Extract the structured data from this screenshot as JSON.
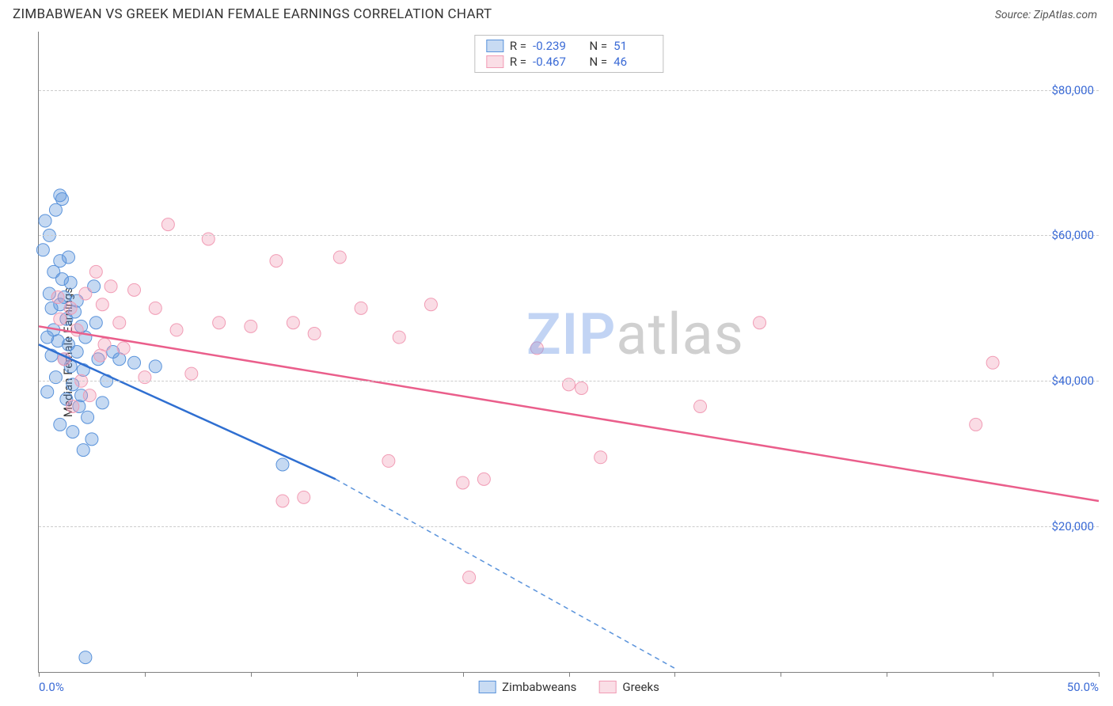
{
  "title": "ZIMBABWEAN VS GREEK MEDIAN FEMALE EARNINGS CORRELATION CHART",
  "source": "Source: ZipAtlas.com",
  "ylabel": "Median Female Earnings",
  "watermark": {
    "zip": "ZIP",
    "atlas": "atlas"
  },
  "chart": {
    "type": "scatter-with-trend",
    "xlim": [
      0,
      50
    ],
    "ylim": [
      0,
      88000
    ],
    "xticks": [
      0,
      5,
      10,
      15,
      20,
      25,
      30,
      35,
      40,
      45,
      50
    ],
    "xtick_labels": {
      "0": "0.0%",
      "50": "50.0%"
    },
    "ygrid": [
      20000,
      40000,
      60000,
      80000
    ],
    "ytick_labels": [
      "$20,000",
      "$40,000",
      "$60,000",
      "$80,000"
    ],
    "background_color": "#ffffff",
    "grid_color": "#cccccc",
    "axis_color": "#808080",
    "label_color": "#3b6bd6",
    "marker_radius": 8,
    "marker_fill_opacity": 0.35,
    "line_width": 2.5,
    "series": [
      {
        "name": "Zimbabweans",
        "key": "zimbabweans",
        "color": "#5a93db",
        "line_color": "#2f6fd1",
        "R": "-0.239",
        "N": "51",
        "trend": {
          "x1": 0,
          "y1": 45000,
          "x2": 14,
          "y2": 26500,
          "ext_x2": 30,
          "ext_y2": 500
        },
        "points": [
          [
            0.3,
            62000
          ],
          [
            0.5,
            60000
          ],
          [
            0.5,
            52000
          ],
          [
            0.6,
            50000
          ],
          [
            0.7,
            55000
          ],
          [
            0.7,
            47000
          ],
          [
            0.8,
            63500
          ],
          [
            1.0,
            65500
          ],
          [
            1.1,
            65000
          ],
          [
            1.1,
            54000
          ],
          [
            1.2,
            51500
          ],
          [
            1.3,
            48500
          ],
          [
            1.4,
            45000
          ],
          [
            1.5,
            53500
          ],
          [
            1.5,
            42000
          ],
          [
            1.6,
            39500
          ],
          [
            1.7,
            49500
          ],
          [
            1.8,
            44000
          ],
          [
            1.9,
            36500
          ],
          [
            2.0,
            47500
          ],
          [
            2.0,
            38000
          ],
          [
            2.1,
            41500
          ],
          [
            2.3,
            35000
          ],
          [
            2.5,
            32000
          ],
          [
            2.6,
            53000
          ],
          [
            2.8,
            43000
          ],
          [
            3.0,
            37000
          ],
          [
            3.2,
            40000
          ],
          [
            3.5,
            44000
          ],
          [
            1.0,
            34000
          ],
          [
            1.3,
            37500
          ],
          [
            0.8,
            40500
          ],
          [
            0.6,
            43500
          ],
          [
            1.8,
            51000
          ],
          [
            2.2,
            46000
          ],
          [
            2.7,
            48000
          ],
          [
            3.8,
            43000
          ],
          [
            4.5,
            42500
          ],
          [
            5.5,
            42000
          ],
          [
            1.0,
            56500
          ],
          [
            1.4,
            57000
          ],
          [
            1.0,
            50500
          ],
          [
            0.4,
            46000
          ],
          [
            0.4,
            38500
          ],
          [
            1.6,
            33000
          ],
          [
            2.1,
            30500
          ],
          [
            0.2,
            58000
          ],
          [
            2.2,
            2000
          ],
          [
            11.5,
            28500
          ],
          [
            1.2,
            43000
          ],
          [
            0.9,
            45500
          ]
        ]
      },
      {
        "name": "Greeks",
        "key": "greeks",
        "color": "#f19cb5",
        "line_color": "#ea5e8b",
        "R": "-0.467",
        "N": "46",
        "trend": {
          "x1": 0,
          "y1": 47500,
          "x2": 50,
          "y2": 23500
        },
        "points": [
          [
            1.0,
            48500
          ],
          [
            1.5,
            50000
          ],
          [
            1.8,
            47000
          ],
          [
            2.2,
            52000
          ],
          [
            2.4,
            38000
          ],
          [
            2.7,
            55000
          ],
          [
            3.0,
            50500
          ],
          [
            3.1,
            45000
          ],
          [
            3.4,
            53000
          ],
          [
            3.8,
            48000
          ],
          [
            4.5,
            52500
          ],
          [
            5.0,
            40500
          ],
          [
            5.5,
            50000
          ],
          [
            6.1,
            61500
          ],
          [
            6.5,
            47000
          ],
          [
            7.2,
            41000
          ],
          [
            8.0,
            59500
          ],
          [
            8.5,
            48000
          ],
          [
            10.0,
            47500
          ],
          [
            11.2,
            56500
          ],
          [
            11.5,
            23500
          ],
          [
            12.0,
            48000
          ],
          [
            12.5,
            24000
          ],
          [
            13.0,
            46500
          ],
          [
            14.2,
            57000
          ],
          [
            15.2,
            50000
          ],
          [
            16.5,
            29000
          ],
          [
            17.0,
            46000
          ],
          [
            18.5,
            50500
          ],
          [
            20.0,
            26000
          ],
          [
            21.0,
            26500
          ],
          [
            20.3,
            13000
          ],
          [
            23.5,
            44500
          ],
          [
            25.0,
            39500
          ],
          [
            25.6,
            39000
          ],
          [
            26.5,
            29500
          ],
          [
            31.2,
            36500
          ],
          [
            34.0,
            48000
          ],
          [
            44.2,
            34000
          ],
          [
            45.0,
            42500
          ],
          [
            1.2,
            43000
          ],
          [
            1.6,
            36500
          ],
          [
            2.0,
            40000
          ],
          [
            2.9,
            43500
          ],
          [
            4.0,
            44500
          ],
          [
            0.9,
            51500
          ]
        ]
      }
    ]
  },
  "legend_bottom": [
    {
      "label": "Zimbabweans",
      "series": "zimbabweans"
    },
    {
      "label": "Greeks",
      "series": "greeks"
    }
  ]
}
